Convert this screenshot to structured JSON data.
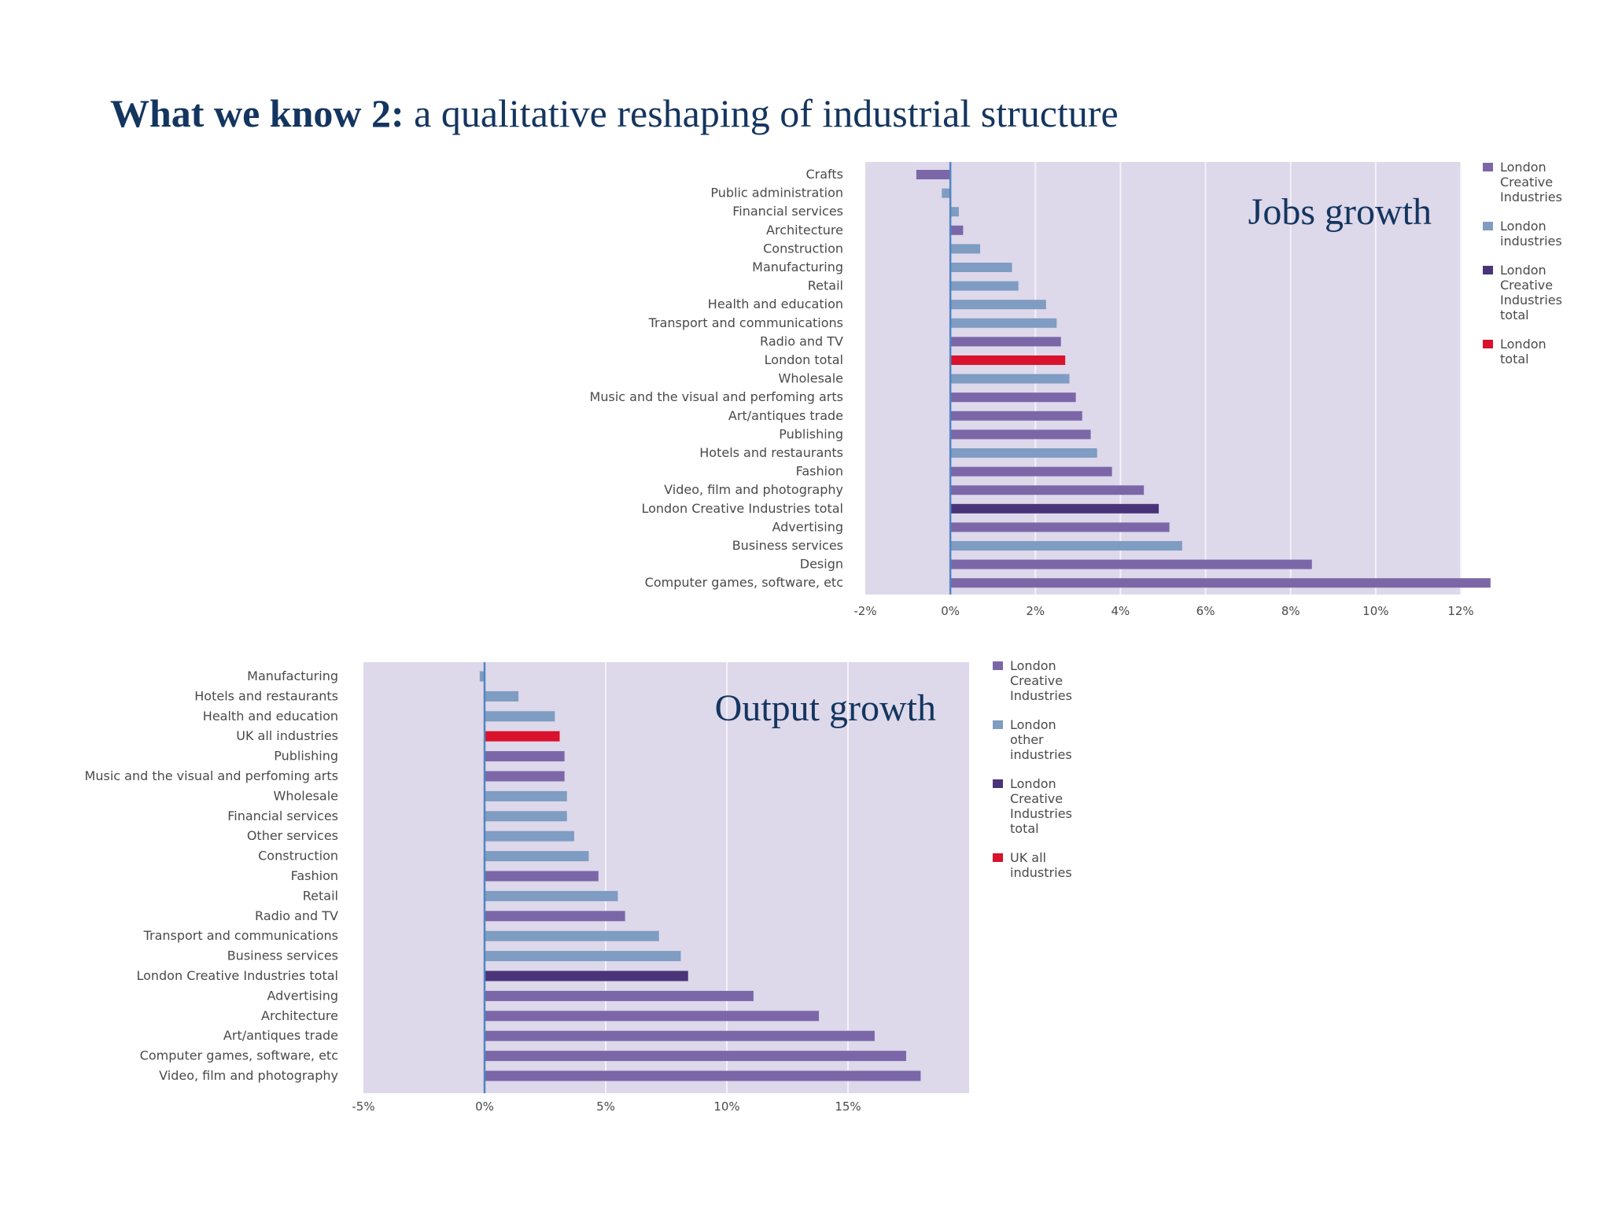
{
  "slide": {
    "title_bold": "What we know 2:",
    "title_rest": " a qualitative reshaping of industrial structure"
  },
  "colors": {
    "creative": "#7b67a8",
    "industries": "#7f9cc2",
    "creative_total": "#4a3479",
    "total": "#d9122d",
    "plot_bg": "#ddd8ea",
    "gridline": "#f4f2f8",
    "zero_line": "#4f86c0"
  },
  "chart_data": [
    {
      "type": "bar",
      "orientation": "horizontal",
      "title": "Jobs growth",
      "tick_format": "%",
      "xlim": [
        -2,
        12
      ],
      "xticks": [
        -2,
        0,
        2,
        4,
        6,
        8,
        10,
        12
      ],
      "xtick_labels": [
        "-2%",
        "0%",
        "2%",
        "4%",
        "6%",
        "8%",
        "10%",
        "12%"
      ],
      "grid": true,
      "legend_position": "right",
      "legend": [
        {
          "key": "creative",
          "lines": [
            "London",
            "Creative",
            "Industries"
          ]
        },
        {
          "key": "industries",
          "lines": [
            "London",
            "industries"
          ]
        },
        {
          "key": "creative_total",
          "lines": [
            "London",
            "Creative",
            "Industries",
            "total"
          ]
        },
        {
          "key": "total",
          "lines": [
            "London",
            "total"
          ]
        }
      ],
      "categories": [
        "Crafts",
        "Public administration",
        "Financial services",
        "Architecture",
        "Construction",
        "Manufacturing",
        "Retail",
        "Health and education",
        "Transport and communications",
        "Radio and TV",
        "London total",
        "Wholesale",
        "Music and the visual and perfoming arts",
        "Art/antiques trade",
        "Publishing",
        "Hotels and restaurants",
        "Fashion",
        "Video, film and photography",
        "London Creative Industries total",
        "Advertising",
        "Business services",
        "Design",
        "Computer games, software, etc"
      ],
      "values": [
        -0.8,
        -0.2,
        0.2,
        0.3,
        0.7,
        1.45,
        1.6,
        2.25,
        2.5,
        2.6,
        2.7,
        2.8,
        2.95,
        3.1,
        3.3,
        3.45,
        3.8,
        4.55,
        4.9,
        5.15,
        5.45,
        8.5,
        12.7
      ],
      "groups": [
        "creative",
        "industries",
        "industries",
        "creative",
        "industries",
        "industries",
        "industries",
        "industries",
        "industries",
        "creative",
        "total",
        "industries",
        "creative",
        "creative",
        "creative",
        "industries",
        "creative",
        "creative",
        "creative_total",
        "creative",
        "industries",
        "creative",
        "creative"
      ]
    },
    {
      "type": "bar",
      "orientation": "horizontal",
      "title": "Output growth",
      "tick_format": "%",
      "xlim": [
        -5,
        20
      ],
      "xticks": [
        -5,
        0,
        5,
        10,
        15
      ],
      "xtick_labels": [
        "-5%",
        "0%",
        "5%",
        "10%",
        "15%"
      ],
      "grid": true,
      "legend_position": "right",
      "legend": [
        {
          "key": "creative",
          "lines": [
            "London",
            "Creative",
            "Industries"
          ]
        },
        {
          "key": "industries",
          "lines": [
            "London",
            "other",
            "industries"
          ]
        },
        {
          "key": "creative_total",
          "lines": [
            "London",
            "Creative",
            "Industries",
            "total"
          ]
        },
        {
          "key": "total",
          "lines": [
            "UK all",
            "industries"
          ]
        }
      ],
      "categories": [
        "Manufacturing",
        "Hotels and restaurants",
        "Health and education",
        "UK all industries",
        "Publishing",
        "Music and the visual and perfoming arts",
        "Wholesale",
        "Financial services",
        "Other services",
        "Construction",
        "Fashion",
        "Retail",
        "Radio and TV",
        "Transport and communications",
        "Business services",
        "London Creative Industries total",
        "Advertising",
        "Architecture",
        "Art/antiques trade",
        "Computer games, software, etc",
        "Video, film and photography"
      ],
      "values": [
        -0.2,
        1.4,
        2.9,
        3.1,
        3.3,
        3.3,
        3.4,
        3.4,
        3.7,
        4.3,
        4.7,
        5.5,
        5.8,
        7.2,
        8.1,
        8.4,
        11.1,
        13.8,
        16.1,
        17.4,
        18.0
      ],
      "groups": [
        "industries",
        "industries",
        "industries",
        "total",
        "creative",
        "creative",
        "industries",
        "industries",
        "industries",
        "industries",
        "creative",
        "industries",
        "creative",
        "industries",
        "industries",
        "creative_total",
        "creative",
        "creative",
        "creative",
        "creative",
        "creative"
      ]
    }
  ]
}
